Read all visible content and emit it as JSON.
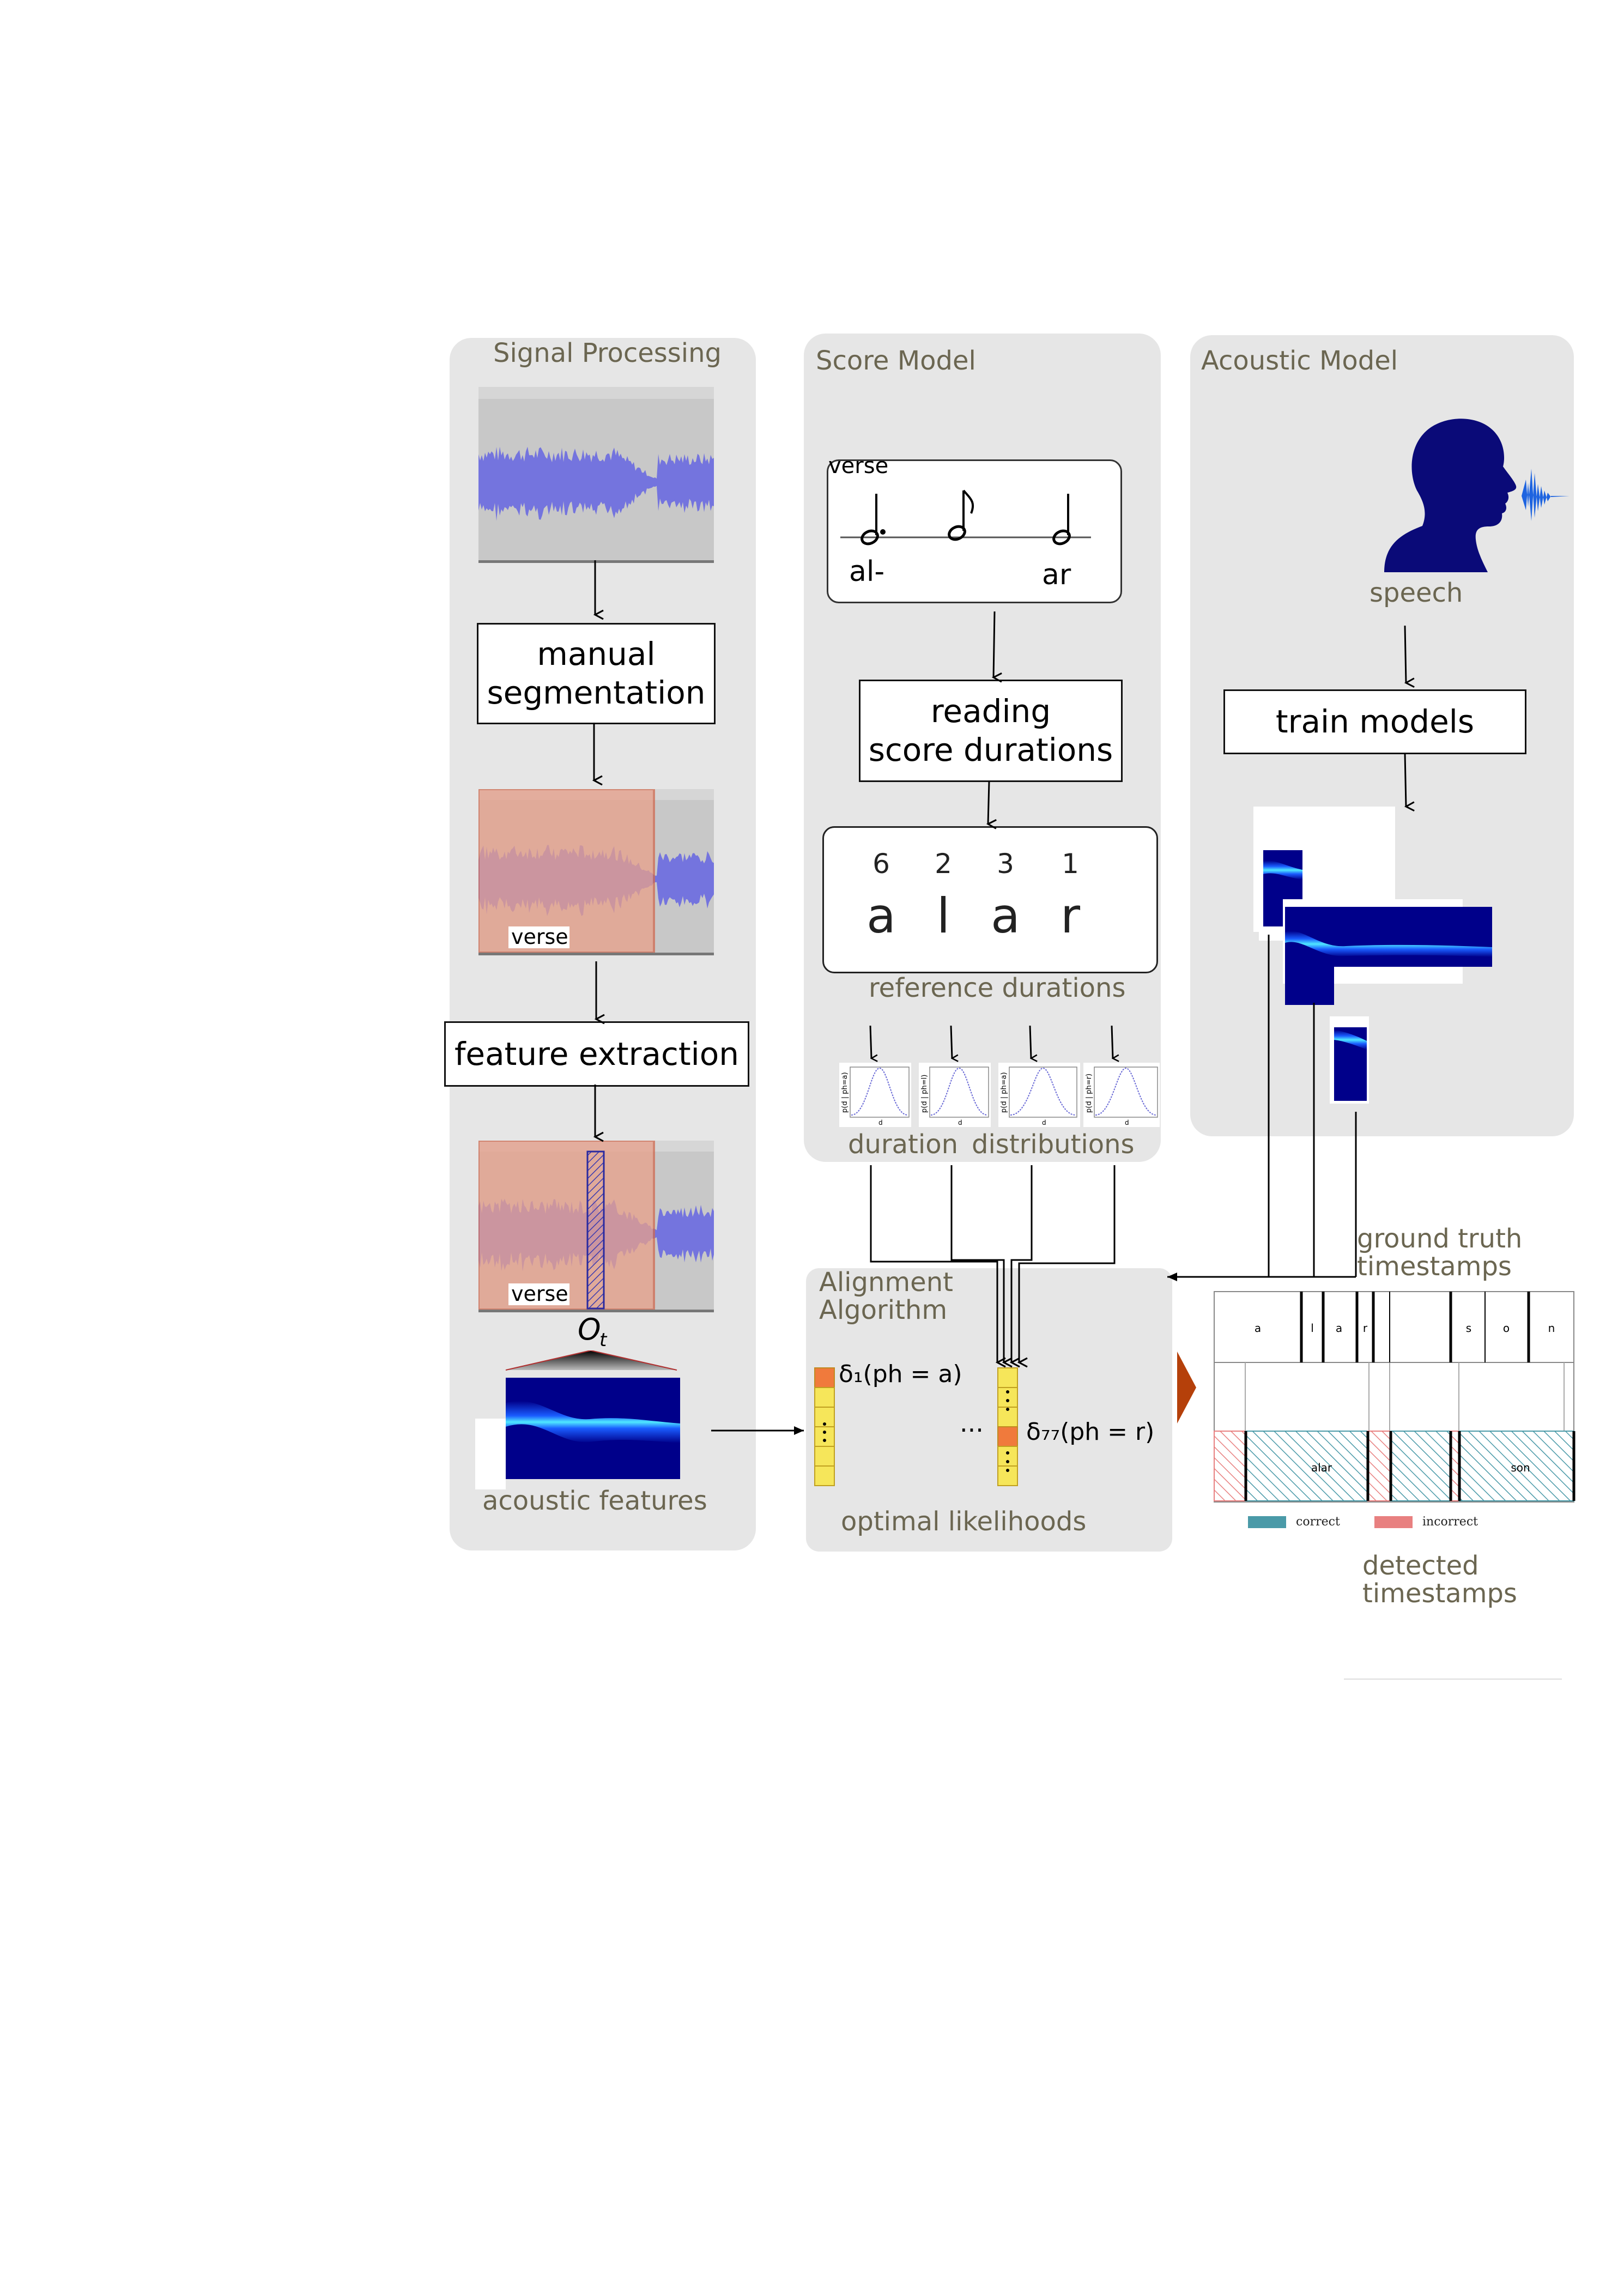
{
  "panels": {
    "signal": {
      "title": "Signal Processing",
      "box_segmentation": "manual\nsegmentation",
      "box_features": "feature extraction",
      "segment_label": "verse",
      "frame_label": "O",
      "frame_label_sub": "t",
      "features_caption": "acoustic features"
    },
    "score": {
      "title": "Score Model",
      "score_label": "verse",
      "syllable_1": "al-",
      "syllable_2": "ar",
      "box_reading": "reading\nscore durations",
      "durations": [
        "6",
        "2",
        "3",
        "1"
      ],
      "phonemes": [
        "a",
        "l",
        "a",
        "r"
      ],
      "ref_caption": "reference durations",
      "dist_caption_1": "duration",
      "dist_caption_2": "distributions",
      "dist_ylabels": [
        "p(d | ph=a)",
        "p(d | ph=l)",
        "p(d | ph=a)",
        "p(d | ph=r)"
      ],
      "dist_xlabel": "d"
    },
    "acoustic": {
      "title": "Acoustic Model",
      "speech_caption": "speech",
      "box_train": "train models"
    },
    "alignment": {
      "title_1": "Alignment",
      "title_2": "Algorithm",
      "delta_1": "δ₁(ph = a)",
      "delta_77": "δ₇₇(ph = r)",
      "ellipsis": "···",
      "caption": "optimal likelihoods"
    },
    "output": {
      "ground_truth_1": "ground truth",
      "ground_truth_2": "timestamps",
      "phoneme_row": [
        "a",
        "l",
        "a",
        "r",
        "s",
        "o",
        "n"
      ],
      "syllables": [
        "alar",
        "son"
      ],
      "legend_correct": "correct",
      "legend_incorrect": "incorrect",
      "detected_1": "detected",
      "detected_2": "timestamps"
    }
  },
  "colors": {
    "panel_bg": "#e6e6e6",
    "title_text": "#6b6651",
    "waveform": "#6a6ae0",
    "segment_overlay": "#e8a08a",
    "speaker": "#0a0a78",
    "correct": "#4a9aa8",
    "incorrect": "#e88080",
    "cell_yellow": "#f6e65a",
    "cell_orange": "#f07a3c",
    "output_arrow": "#b5400a"
  }
}
